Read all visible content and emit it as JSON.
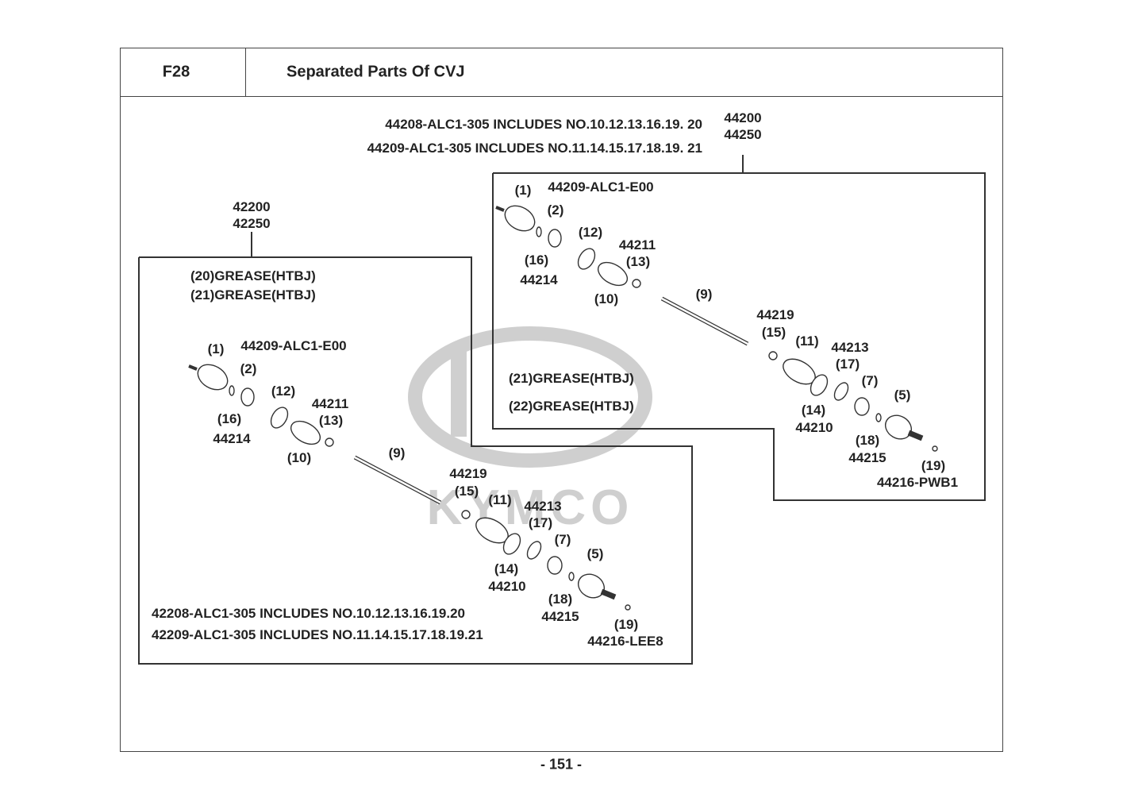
{
  "header": {
    "code": "F28",
    "title": "Separated Parts Of CVJ"
  },
  "page_number": "- 151 -",
  "watermark": {
    "text": "KYMCO",
    "color": "#c8c8c8"
  },
  "right_group": {
    "part_numbers": [
      "44200",
      "44250"
    ],
    "includes": [
      "44208-ALC1-305  INCLUDES NO.10.12.13.16.19. 20",
      "44209-ALC1-305 INCLUDES NO.11.14.15.17.18.19. 21"
    ],
    "grease": [
      "(21)GREASE(HTBJ)",
      "(22)GREASE(HTBJ)"
    ],
    "labels": [
      "(1)",
      "44209-ALC1-E00",
      "(2)",
      "(16)",
      "44214",
      "(12)",
      "44211",
      "(13)",
      "(10)",
      "(9)",
      "44219",
      "(15)",
      "(11)",
      "44213",
      "(17)",
      "(7)",
      "(5)",
      "(14)",
      "44210",
      "(18)",
      "44215",
      "(19)",
      "44216-PWB1"
    ]
  },
  "left_group": {
    "part_numbers": [
      "42200",
      "42250"
    ],
    "grease": [
      "(20)GREASE(HTBJ)",
      "(21)GREASE(HTBJ)"
    ],
    "includes": [
      "42208-ALC1-305 INCLUDES NO.10.12.13.16.19.20",
      "42209-ALC1-305 INCLUDES NO.11.14.15.17.18.19.21"
    ],
    "labels": [
      "(1)",
      "44209-ALC1-E00",
      "(2)",
      "(16)",
      "44214",
      "(12)",
      "44211",
      "(13)",
      "(10)",
      "(9)",
      "44219",
      "(15)",
      "(11)",
      "44213",
      "(17)",
      "(7)",
      "(5)",
      "(14)",
      "44210",
      "(18)",
      "44215",
      "(19)",
      "44216-LEE8"
    ]
  }
}
